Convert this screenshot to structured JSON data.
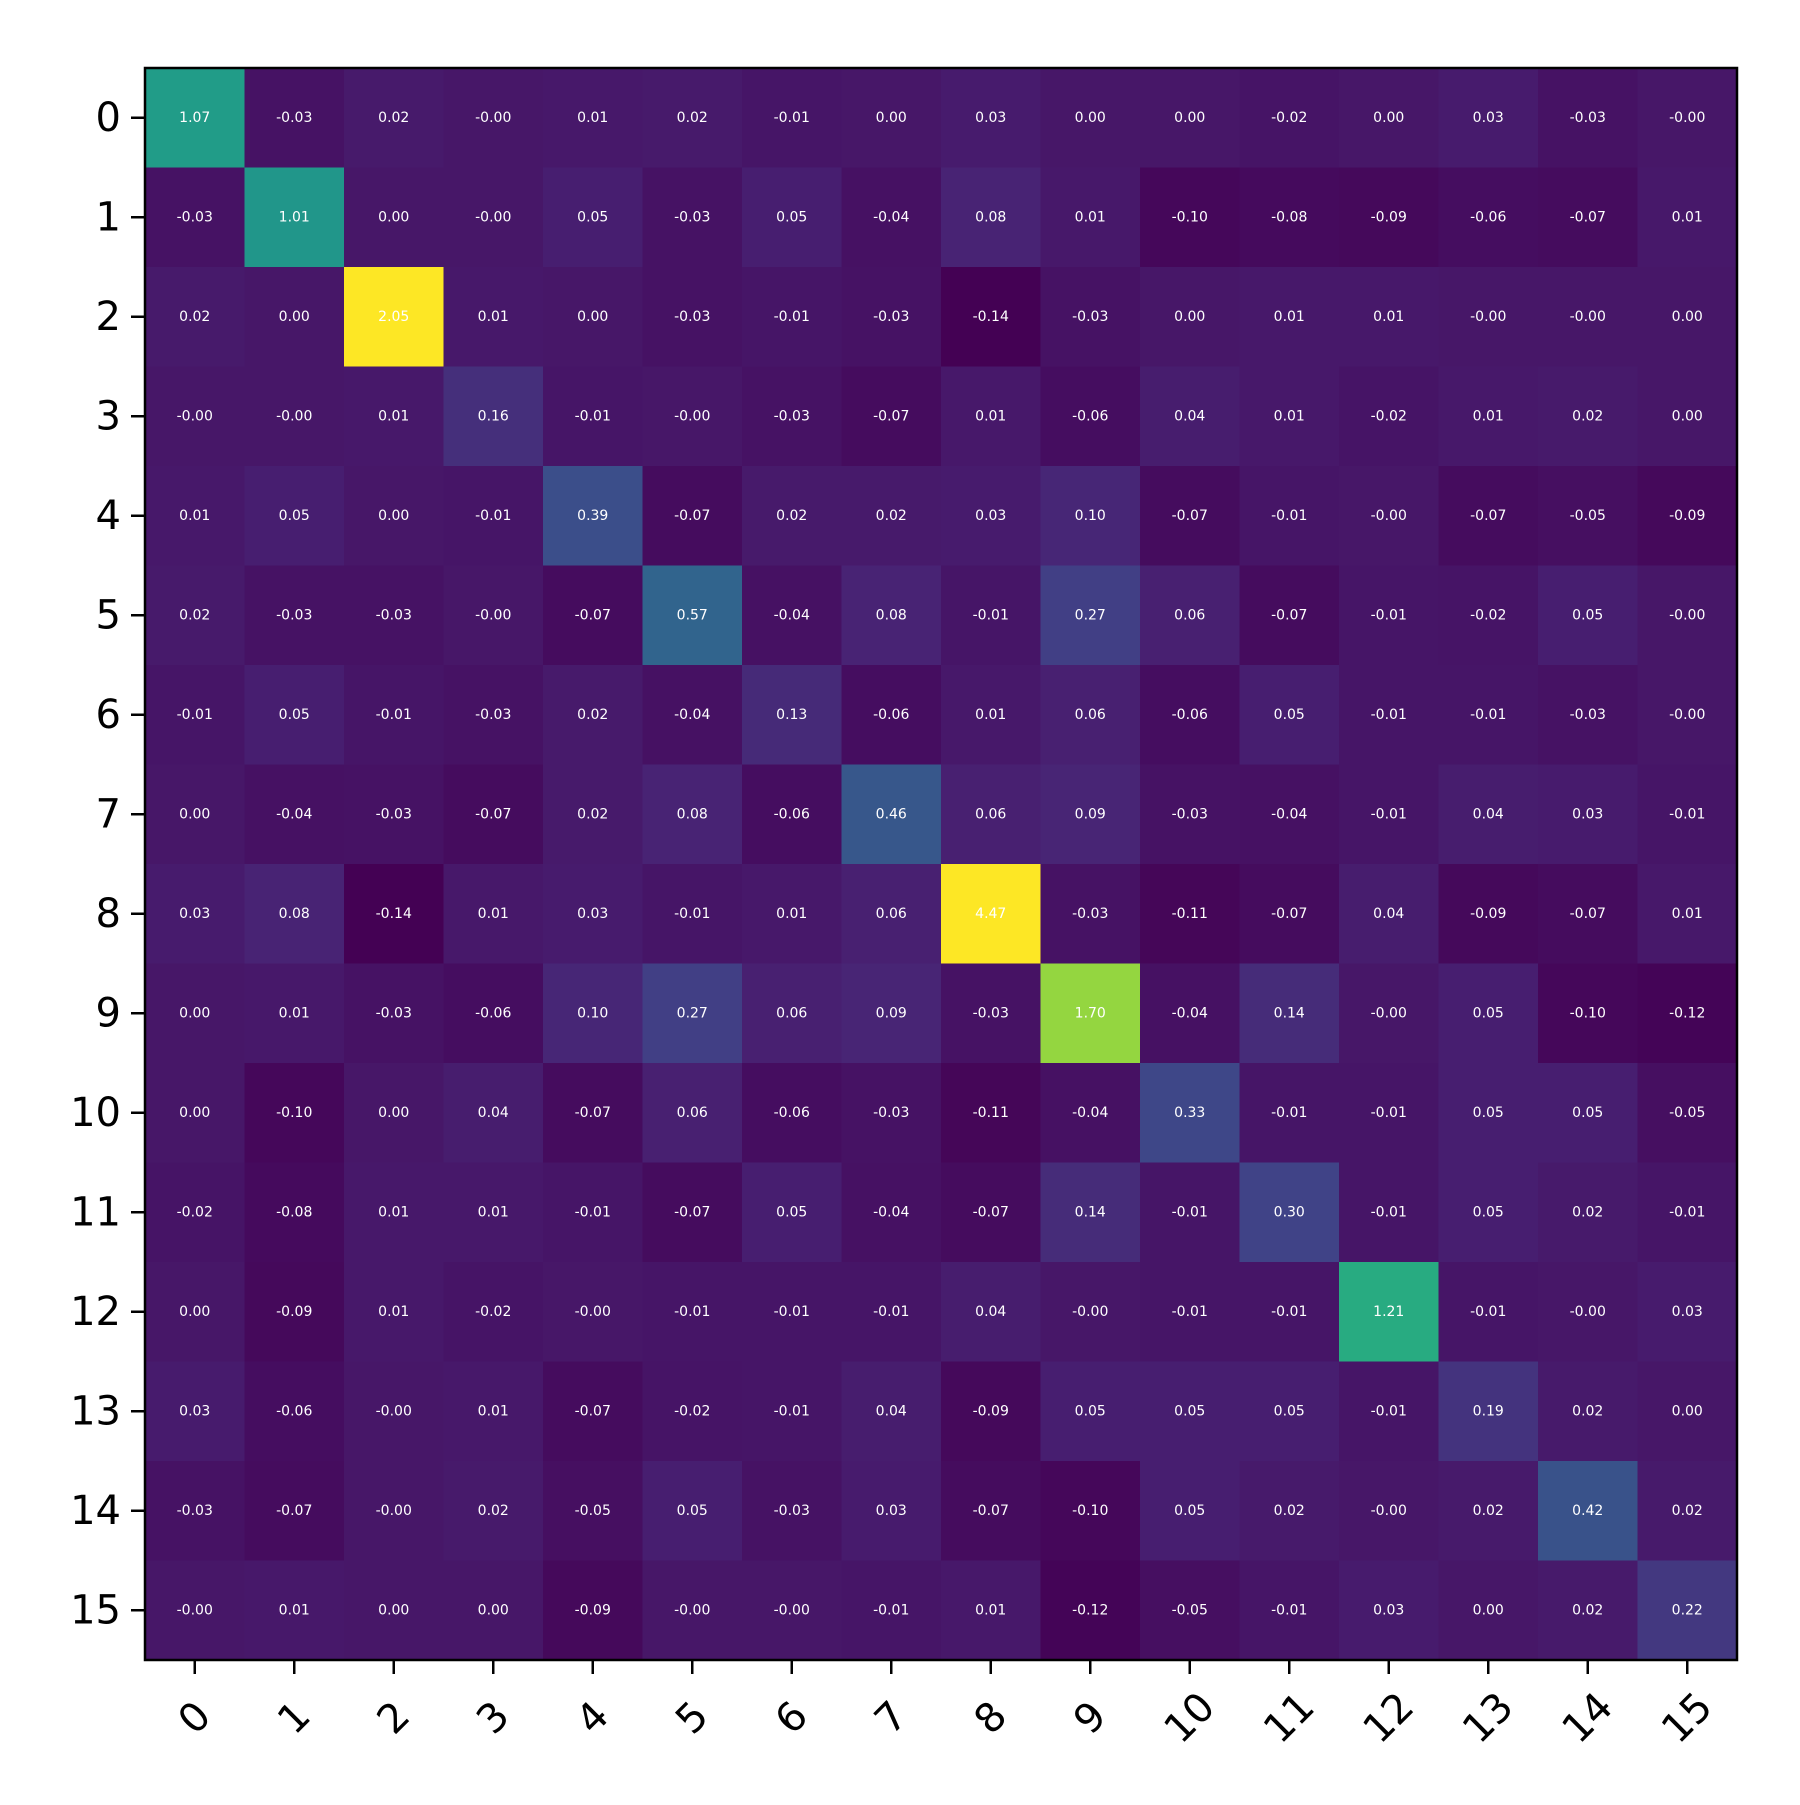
{
  "chart_data": {
    "type": "heatmap",
    "title": "",
    "xlabel": "",
    "ylabel": "",
    "x_categories": [
      "0",
      "1",
      "2",
      "3",
      "4",
      "5",
      "6",
      "7",
      "8",
      "9",
      "10",
      "11",
      "12",
      "13",
      "14",
      "15"
    ],
    "y_categories": [
      "0",
      "1",
      "2",
      "3",
      "4",
      "5",
      "6",
      "7",
      "8",
      "9",
      "10",
      "11",
      "12",
      "13",
      "14",
      "15"
    ],
    "x_tick_rotation_deg": 45,
    "colormap": "viridis",
    "color_range": [
      -0.14,
      2.05
    ],
    "annotation_format": "2 decimals",
    "values": [
      [
        1.07,
        -0.03,
        0.02,
        -0.0,
        0.01,
        0.02,
        -0.01,
        0.0,
        0.03,
        0.0,
        0.0,
        -0.02,
        0.0,
        0.03,
        -0.03,
        -0.0
      ],
      [
        -0.03,
        1.01,
        0.0,
        -0.0,
        0.05,
        -0.03,
        0.05,
        -0.04,
        0.08,
        0.01,
        -0.1,
        -0.08,
        -0.09,
        -0.06,
        -0.07,
        0.01
      ],
      [
        0.02,
        0.0,
        2.05,
        0.01,
        0.0,
        -0.03,
        -0.01,
        -0.03,
        -0.14,
        -0.03,
        0.0,
        0.01,
        0.01,
        -0.0,
        -0.0,
        0.0
      ],
      [
        -0.0,
        -0.0,
        0.01,
        0.16,
        -0.01,
        -0.0,
        -0.03,
        -0.07,
        0.01,
        -0.06,
        0.04,
        0.01,
        -0.02,
        0.01,
        0.02,
        0.0
      ],
      [
        0.01,
        0.05,
        0.0,
        -0.01,
        0.39,
        -0.07,
        0.02,
        0.02,
        0.03,
        0.1,
        -0.07,
        -0.01,
        -0.0,
        -0.07,
        -0.05,
        -0.09
      ],
      [
        0.02,
        -0.03,
        -0.03,
        -0.0,
        -0.07,
        0.57,
        -0.04,
        0.08,
        -0.01,
        0.27,
        0.06,
        -0.07,
        -0.01,
        -0.02,
        0.05,
        -0.0
      ],
      [
        -0.01,
        0.05,
        -0.01,
        -0.03,
        0.02,
        -0.04,
        0.13,
        -0.06,
        0.01,
        0.06,
        -0.06,
        0.05,
        -0.01,
        -0.01,
        -0.03,
        -0.0
      ],
      [
        0.0,
        -0.04,
        -0.03,
        -0.07,
        0.02,
        0.08,
        -0.06,
        0.46,
        0.06,
        0.09,
        -0.03,
        -0.04,
        -0.01,
        0.04,
        0.03,
        -0.01
      ],
      [
        0.03,
        0.08,
        -0.14,
        0.01,
        0.03,
        -0.01,
        0.01,
        0.06,
        4.47,
        -0.03,
        -0.11,
        -0.07,
        0.04,
        -0.09,
        -0.07,
        0.01
      ],
      [
        0.0,
        0.01,
        -0.03,
        -0.06,
        0.1,
        0.27,
        0.06,
        0.09,
        -0.03,
        1.7,
        -0.04,
        0.14,
        -0.0,
        0.05,
        -0.1,
        -0.12
      ],
      [
        0.0,
        -0.1,
        0.0,
        0.04,
        -0.07,
        0.06,
        -0.06,
        -0.03,
        -0.11,
        -0.04,
        0.33,
        -0.01,
        -0.01,
        0.05,
        0.05,
        -0.05
      ],
      [
        -0.02,
        -0.08,
        0.01,
        0.01,
        -0.01,
        -0.07,
        0.05,
        -0.04,
        -0.07,
        0.14,
        -0.01,
        0.3,
        -0.01,
        0.05,
        0.02,
        -0.01
      ],
      [
        0.0,
        -0.09,
        0.01,
        -0.02,
        -0.0,
        -0.01,
        -0.01,
        -0.01,
        0.04,
        -0.0,
        -0.01,
        -0.01,
        1.21,
        -0.01,
        -0.0,
        0.03
      ],
      [
        0.03,
        -0.06,
        -0.0,
        0.01,
        -0.07,
        -0.02,
        -0.01,
        0.04,
        -0.09,
        0.05,
        0.05,
        0.05,
        -0.01,
        0.19,
        0.02,
        0.0
      ],
      [
        -0.03,
        -0.07,
        -0.0,
        0.02,
        -0.05,
        0.05,
        -0.03,
        0.03,
        -0.07,
        -0.1,
        0.05,
        0.02,
        -0.0,
        0.02,
        0.42,
        0.02
      ],
      [
        -0.0,
        0.01,
        0.0,
        0.0,
        -0.09,
        -0.0,
        -0.0,
        -0.01,
        0.01,
        -0.12,
        -0.05,
        -0.01,
        0.03,
        0.0,
        0.02,
        0.22
      ]
    ]
  }
}
